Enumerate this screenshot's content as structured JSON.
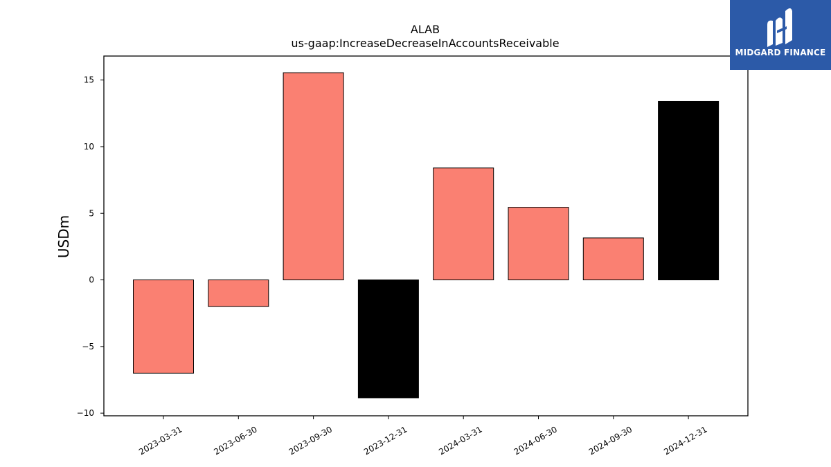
{
  "chart_data": {
    "type": "bar",
    "title": "ALAB",
    "subtitle": "us-gaap:IncreaseDecreaseInAccountsReceivable",
    "xlabel": "",
    "ylabel": "USDm",
    "categories": [
      "2023-03-31",
      "2023-06-30",
      "2023-09-30",
      "2023-12-31",
      "2024-03-31",
      "2024-06-30",
      "2024-09-30",
      "2024-12-31"
    ],
    "values": [
      -7.0,
      -2.0,
      15.55,
      -8.85,
      8.4,
      5.45,
      3.15,
      13.4
    ],
    "bar_colors": [
      "#fa8072",
      "#fa8072",
      "#fa8072",
      "#000000",
      "#fa8072",
      "#fa8072",
      "#fa8072",
      "#000000"
    ],
    "ylim": [
      -10.2,
      16.8
    ],
    "yticks": [
      -10,
      -5,
      0,
      5,
      10,
      15
    ],
    "ytick_labels": [
      "−10",
      "−5",
      "0",
      "5",
      "10",
      "15"
    ],
    "grid": false,
    "legend": "none"
  },
  "logo": {
    "text": "MIDGARD FINANCE",
    "background": "#2c5aa8",
    "icon": "midgard-logo-icon"
  }
}
